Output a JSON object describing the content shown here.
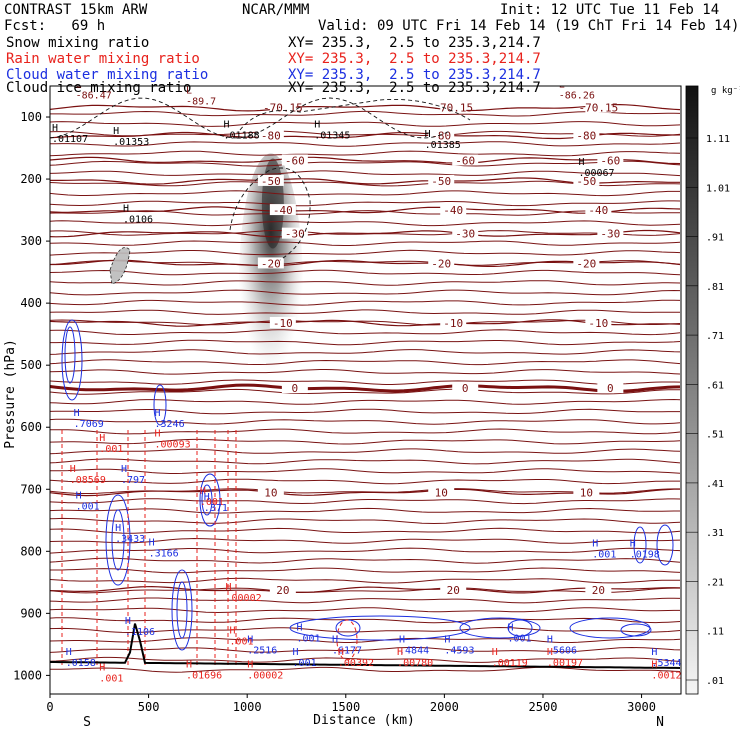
{
  "header": {
    "model": "CONTRAST 15km ARW",
    "org": "NCAR/MMM",
    "init": "Init: 12 UTC Tue 11 Feb 14",
    "fcst": "Fcst:   69 h",
    "valid": "Valid: 09 UTC Fri 14 Feb 14 (19 ChT Fri 14 Feb 14)",
    "fields": [
      {
        "label": "Snow mixing ratio",
        "xy": "XY= 235.3,  2.5 to 235.3,214.7",
        "color": "#000000"
      },
      {
        "label": "Rain water mixing ratio",
        "xy": "XY= 235.3,  2.5 to 235.3,214.7",
        "color": "#e8221c"
      },
      {
        "label": "Cloud water mixing ratio",
        "xy": "XY= 235.3,  2.5 to 235.3,214.7",
        "color": "#1c2fe0"
      },
      {
        "label": "Cloud ice mixing ratio",
        "xy": "XY= 235.3,  2.5 to 235.3,214.7",
        "color": "#000000"
      }
    ]
  },
  "chart_data": {
    "type": "heatmap",
    "xlabel": "Distance (km)",
    "ylabel": "Pressure (hPa)",
    "xlim": [
      0,
      3200
    ],
    "ylim": [
      1030,
      50
    ],
    "x_ticks": [
      0,
      500,
      1000,
      1500,
      2000,
      2500,
      3000
    ],
    "y_ticks": [
      100,
      200,
      300,
      400,
      500,
      600,
      700,
      800,
      900,
      1000
    ],
    "direction_labels": {
      "left": "S",
      "right": "N"
    },
    "colorbar": {
      "unit": "g kg⁻¹",
      "ticks": [
        "1.11",
        "1.01",
        ".91",
        ".81",
        ".71",
        ".61",
        ".51",
        ".41",
        ".31",
        ".21",
        ".11",
        ".01"
      ]
    },
    "snow_plume": {
      "center_km": 1120,
      "top_hPa": 175,
      "bottom_hPa": 560,
      "max_g_kg": 1.11
    },
    "temperature_contours": [
      {
        "label": "-80",
        "pressure": 130
      },
      {
        "label": "-70.15",
        "pressure": 85
      },
      {
        "label": "-60",
        "pressure": 170
      },
      {
        "label": "-50",
        "pressure": 203
      },
      {
        "label": "-40",
        "pressure": 250
      },
      {
        "label": "-30",
        "pressure": 288
      },
      {
        "label": "-20",
        "pressure": 336
      },
      {
        "label": "-10",
        "pressure": 432
      },
      {
        "label": "0",
        "pressure": 537
      },
      {
        "label": "10",
        "pressure": 705
      },
      {
        "label": "20",
        "pressure": 862
      }
    ],
    "highs_lows": [
      {
        "kind": "L",
        "value": "-86.47",
        "x": 130,
        "p": 70,
        "color": "#7a1010"
      },
      {
        "kind": "L",
        "value": "-89.7",
        "x": 690,
        "p": 80,
        "color": "#7a1010"
      },
      {
        "kind": "L",
        "value": "-86.26",
        "x": 2580,
        "p": 70,
        "color": "#7a1010"
      },
      {
        "kind": "H",
        "value": ".01107",
        "x": 10,
        "p": 140,
        "color": "#000000"
      },
      {
        "kind": "H",
        "value": ".01353",
        "x": 320,
        "p": 145,
        "color": "#000000"
      },
      {
        "kind": "H",
        "value": ".01188",
        "x": 880,
        "p": 135,
        "color": "#000000"
      },
      {
        "kind": "H",
        "value": ".01345",
        "x": 1340,
        "p": 135,
        "color": "#000000"
      },
      {
        "kind": "H",
        "value": ".01385",
        "x": 1900,
        "p": 150,
        "color": "#000000"
      },
      {
        "kind": "H",
        "value": ".00067",
        "x": 2680,
        "p": 195,
        "color": "#000000"
      },
      {
        "kind": "H",
        "value": ".0106",
        "x": 370,
        "p": 270,
        "color": "#000000"
      },
      {
        "kind": "H",
        "value": ".7069",
        "x": 120,
        "p": 600,
        "color": "#1c2fe0"
      },
      {
        "kind": "H",
        "value": ".3246",
        "x": 530,
        "p": 600,
        "color": "#1c2fe0"
      },
      {
        "kind": "H",
        "value": ".00093",
        "x": 530,
        "p": 633,
        "color": "#e8221c"
      },
      {
        "kind": "H",
        "value": ".001",
        "x": 250,
        "p": 640,
        "color": "#e8221c"
      },
      {
        "kind": "H",
        "value": ".08569",
        "x": 100,
        "p": 690,
        "color": "#e8221c"
      },
      {
        "kind": "H",
        "value": ".797",
        "x": 360,
        "p": 690,
        "color": "#1c2fe0"
      },
      {
        "kind": "H",
        "value": ".001",
        "x": 130,
        "p": 733,
        "color": "#1c2fe0"
      },
      {
        "kind": "H",
        "value": ".001",
        "x": 760,
        "p": 725,
        "color": "#e8221c"
      },
      {
        "kind": "H",
        "value": ".371",
        "x": 780,
        "p": 735,
        "color": "#1c2fe0"
      },
      {
        "kind": "H",
        "value": ".3433",
        "x": 330,
        "p": 785,
        "color": "#1c2fe0"
      },
      {
        "kind": "H",
        "value": ".3166",
        "x": 500,
        "p": 808,
        "color": "#1c2fe0"
      },
      {
        "kind": "H",
        "value": ".00002",
        "x": 890,
        "p": 880,
        "color": "#e8221c"
      },
      {
        "kind": "H",
        "value": ".001",
        "x": 2750,
        "p": 810,
        "color": "#1c2fe0"
      },
      {
        "kind": "H",
        "value": ".0198",
        "x": 2940,
        "p": 810,
        "color": "#1c2fe0"
      },
      {
        "kind": "H",
        "value": ".1106",
        "x": 380,
        "p": 935,
        "color": "#1c2fe0"
      },
      {
        "kind": "H",
        "value": ".0158",
        "x": 80,
        "p": 985,
        "color": "#1c2fe0"
      },
      {
        "kind": "H",
        "value": ".001",
        "x": 250,
        "p": 1010,
        "color": "#e8221c"
      },
      {
        "kind": "H",
        "value": ".01696",
        "x": 690,
        "p": 1005,
        "color": "#e8221c"
      },
      {
        "kind": "H",
        "value": ".001",
        "x": 910,
        "p": 950,
        "color": "#e8221c"
      },
      {
        "kind": "H",
        "value": ".2516",
        "x": 1000,
        "p": 965,
        "color": "#1c2fe0"
      },
      {
        "kind": "H",
        "value": ".00002",
        "x": 1000,
        "p": 1005,
        "color": "#e8221c"
      },
      {
        "kind": "H",
        "value": ".001",
        "x": 1250,
        "p": 945,
        "color": "#1c2fe0"
      },
      {
        "kind": "H",
        "value": ".001",
        "x": 1230,
        "p": 985,
        "color": "#1c2fe0"
      },
      {
        "kind": "H",
        "value": ".6177",
        "x": 1430,
        "p": 965,
        "color": "#1c2fe0"
      },
      {
        "kind": "H",
        "value": ".00392",
        "x": 1460,
        "p": 985,
        "color": "#e8221c"
      },
      {
        "kind": "H",
        "value": ".4844",
        "x": 1770,
        "p": 965,
        "color": "#1c2fe0"
      },
      {
        "kind": "H",
        "value": ".00780",
        "x": 1760,
        "p": 985,
        "color": "#e8221c"
      },
      {
        "kind": "H",
        "value": ".4593",
        "x": 2000,
        "p": 965,
        "color": "#1c2fe0"
      },
      {
        "kind": "H",
        "value": ".00119",
        "x": 2240,
        "p": 985,
        "color": "#e8221c"
      },
      {
        "kind": "H",
        "value": ".001",
        "x": 2320,
        "p": 945,
        "color": "#1c2fe0"
      },
      {
        "kind": "H",
        "value": ".5606",
        "x": 2520,
        "p": 965,
        "color": "#1c2fe0"
      },
      {
        "kind": "H",
        "value": ".00197",
        "x": 2520,
        "p": 985,
        "color": "#e8221c"
      },
      {
        "kind": "H",
        "value": ".5344",
        "x": 3050,
        "p": 985,
        "color": "#1c2fe0"
      },
      {
        "kind": "H",
        "value": ".0012",
        "x": 3050,
        "p": 1005,
        "color": "#e8221c"
      }
    ]
  }
}
